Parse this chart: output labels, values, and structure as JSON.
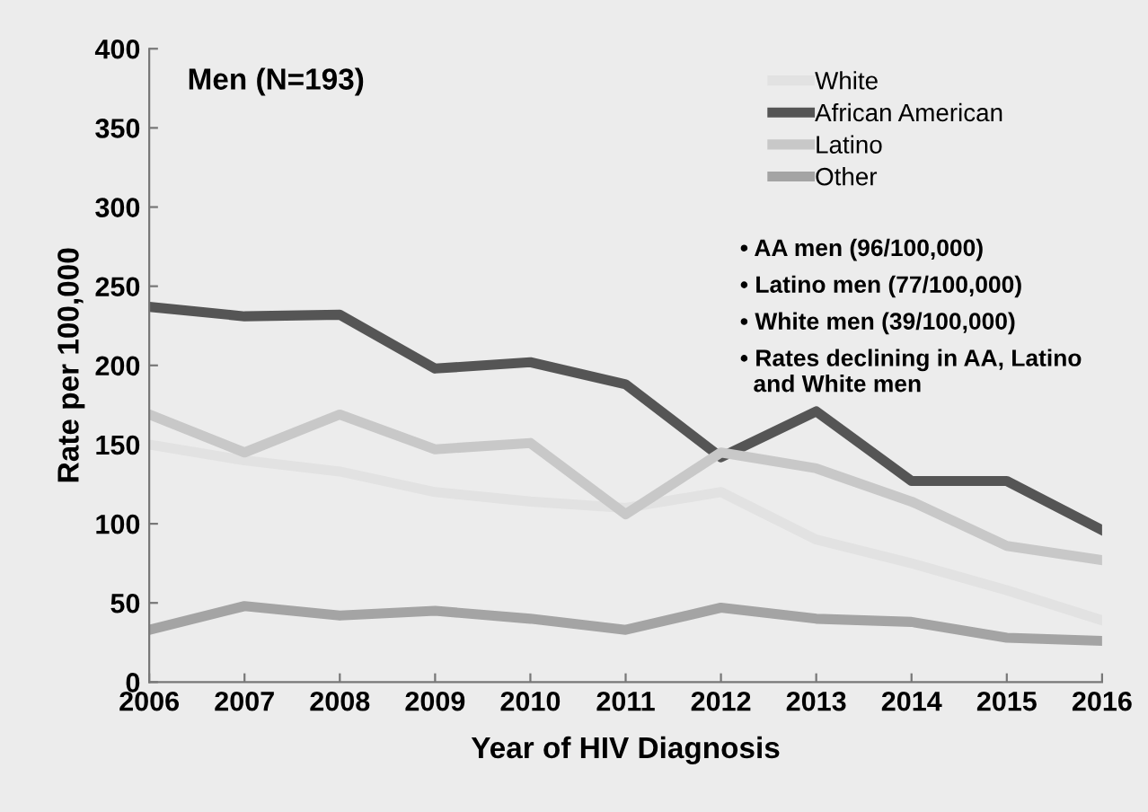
{
  "chart_data": {
    "type": "line",
    "title": "Men (N=193)",
    "xlabel": "Year of HIV Diagnosis",
    "ylabel": "Rate per 100,000",
    "categories": [
      "2006",
      "2007",
      "2008",
      "2009",
      "2010",
      "2011",
      "2012",
      "2013",
      "2014",
      "2015",
      "2016"
    ],
    "series": [
      {
        "name": "White",
        "color": "#e2e2e2",
        "values": [
          150,
          140,
          133,
          120,
          114,
          110,
          120,
          90,
          75,
          58,
          39
        ]
      },
      {
        "name": "African American",
        "color": "#555555",
        "values": [
          237,
          231,
          232,
          198,
          202,
          188,
          142,
          171,
          127,
          127,
          96
        ]
      },
      {
        "name": "Latino",
        "color": "#c8c8c8",
        "values": [
          169,
          145,
          169,
          147,
          151,
          106,
          145,
          135,
          114,
          86,
          77
        ]
      },
      {
        "name": "Other",
        "color": "#a4a4a4",
        "values": [
          33,
          48,
          42,
          45,
          40,
          33,
          47,
          40,
          38,
          28,
          26
        ]
      }
    ],
    "ylim": [
      0,
      400
    ],
    "yticks": [
      0,
      50,
      100,
      150,
      200,
      250,
      300,
      350,
      400
    ],
    "legend": "top right",
    "grid": false,
    "marker": "none",
    "line_style": "solid",
    "annotations": [
      "• AA men (96/100,000)",
      "• Latino men (77/100,000)",
      "• White men (39/100,000)",
      "• Rates declining in AA, Latino\n  and White men"
    ]
  }
}
